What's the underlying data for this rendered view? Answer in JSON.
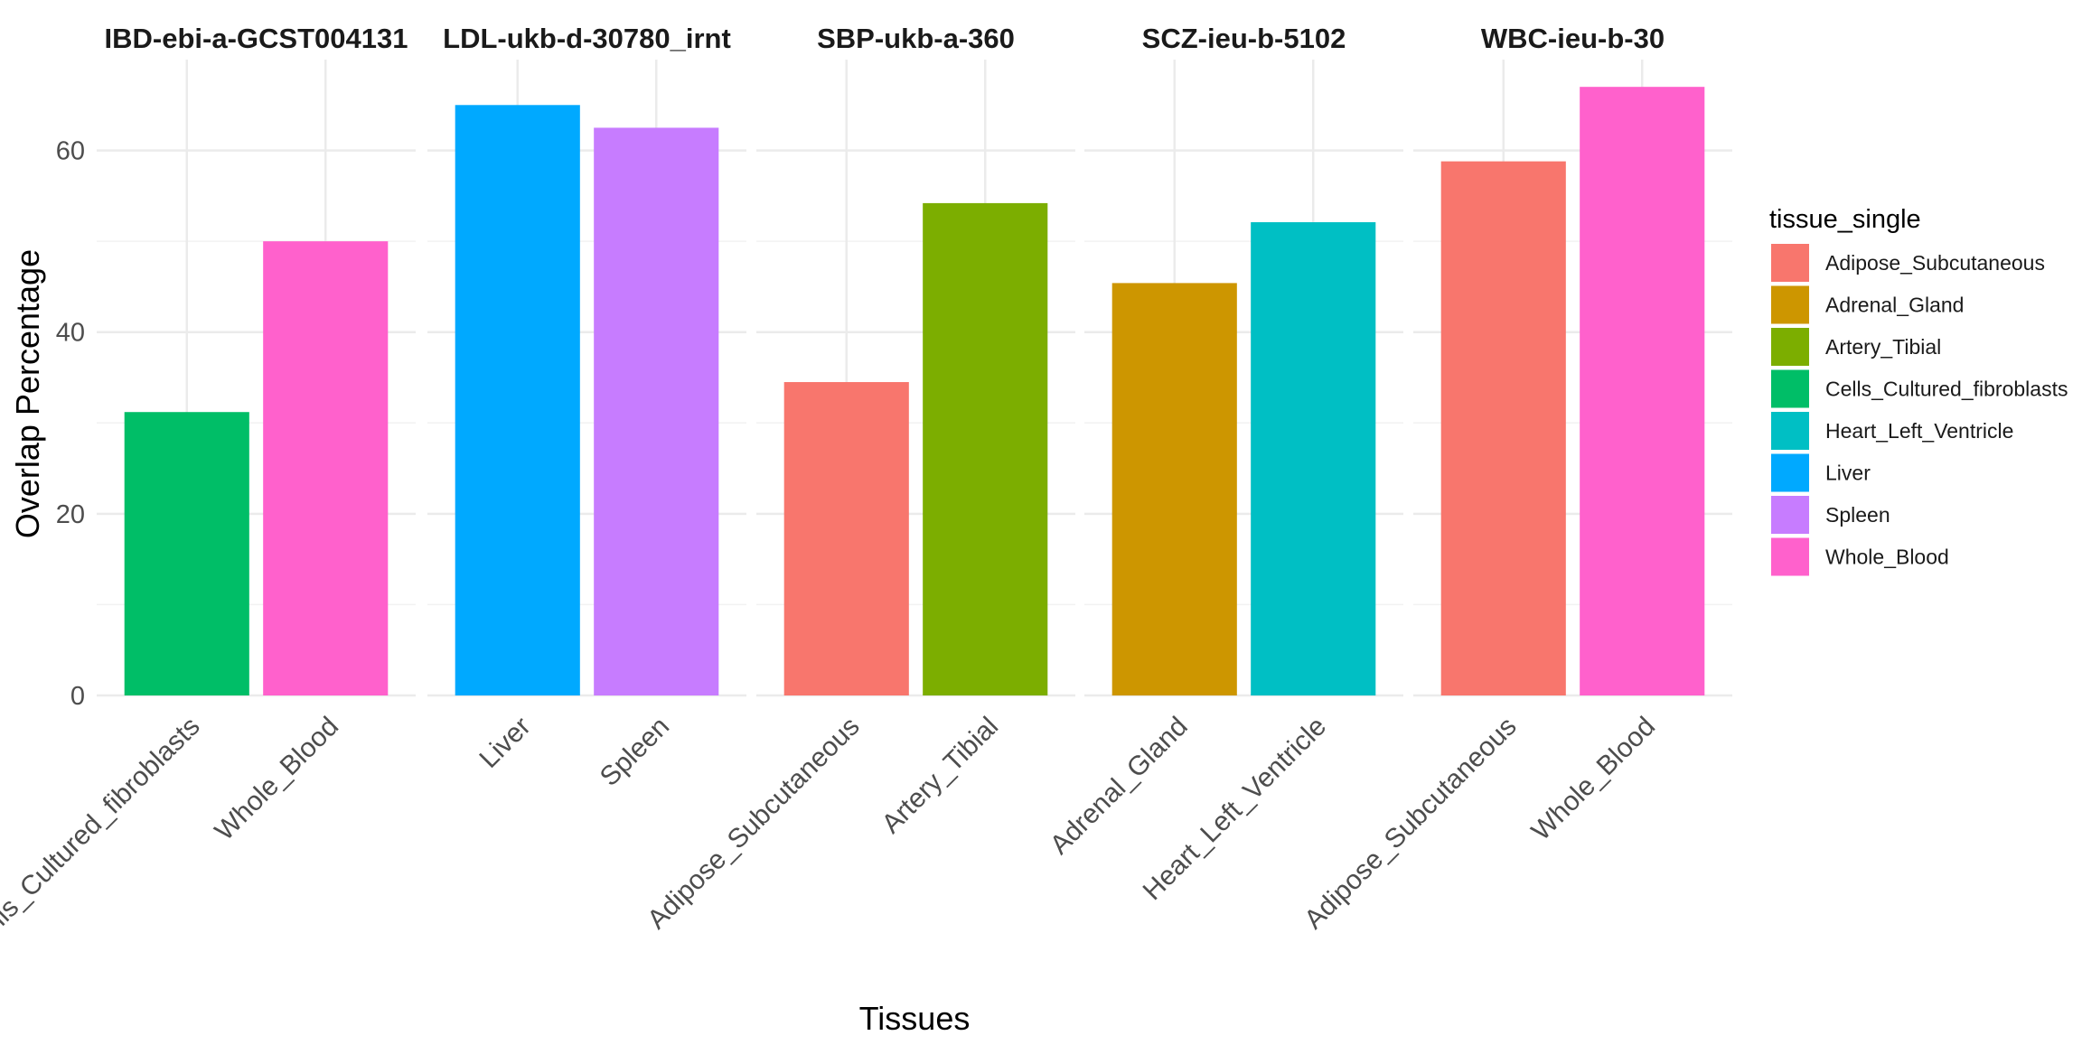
{
  "chart_data": {
    "type": "bar",
    "title": "",
    "xlabel": "Tissues",
    "ylabel": "Overlap Percentage",
    "ylim": [
      0,
      70
    ],
    "y_ticks": [
      0,
      20,
      40,
      60
    ],
    "grid": true,
    "legend": {
      "title": "tissue_single",
      "position": "right",
      "entries": [
        {
          "name": "Adipose_Subcutaneous",
          "color": "#F8766D"
        },
        {
          "name": "Adrenal_Gland",
          "color": "#CD9600"
        },
        {
          "name": "Artery_Tibial",
          "color": "#7CAE00"
        },
        {
          "name": "Cells_Cultured_fibroblasts",
          "color": "#00BE67"
        },
        {
          "name": "Heart_Left_Ventricle",
          "color": "#00BFC4"
        },
        {
          "name": "Liver",
          "color": "#00A9FF"
        },
        {
          "name": "Spleen",
          "color": "#C77CFF"
        },
        {
          "name": "Whole_Blood",
          "color": "#FF61CC"
        }
      ]
    },
    "facets": [
      {
        "name": "IBD-ebi-a-GCST004131",
        "categories": [
          "Cells_Cultured_fibroblasts",
          "Whole_Blood"
        ],
        "values": [
          31.2,
          50.0
        ]
      },
      {
        "name": "LDL-ukb-d-30780_irnt",
        "categories": [
          "Liver",
          "Spleen"
        ],
        "values": [
          65.0,
          62.5
        ]
      },
      {
        "name": "SBP-ukb-a-360",
        "categories": [
          "Adipose_Subcutaneous",
          "Artery_Tibial"
        ],
        "values": [
          34.5,
          54.2
        ]
      },
      {
        "name": "SCZ-ieu-b-5102",
        "categories": [
          "Adrenal_Gland",
          "Heart_Left_Ventricle"
        ],
        "values": [
          45.4,
          52.1
        ]
      },
      {
        "name": "WBC-ieu-b-30",
        "categories": [
          "Adipose_Subcutaneous",
          "Whole_Blood"
        ],
        "values": [
          58.8,
          67.0
        ]
      }
    ]
  }
}
